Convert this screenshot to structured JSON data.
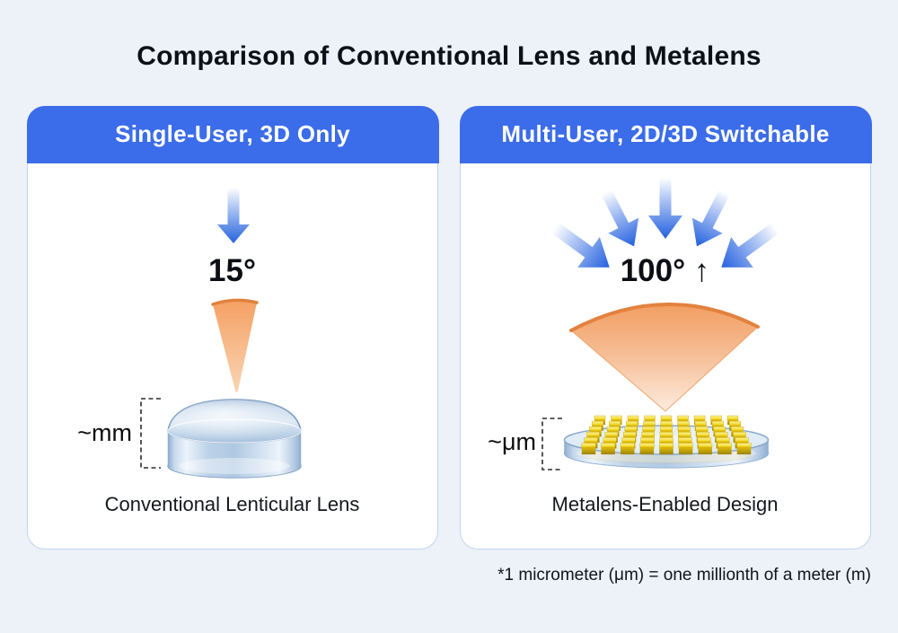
{
  "title": "Comparison of Conventional Lens and Metalens",
  "panels": {
    "left": {
      "header": "Single-User, 3D Only",
      "angle_label": "15°",
      "scale_label": "~mm",
      "caption": "Conventional Lenticular Lens"
    },
    "right": {
      "header": "Multi-User, 2D/3D Switchable",
      "angle_label": "100° ↑",
      "scale_label": "~μm",
      "caption": "Metalens-Enabled Design",
      "grid": {
        "rows": 6,
        "cols": 9
      }
    }
  },
  "footnote": "*1 micrometer (μm) = one millionth of a meter (m)",
  "colors": {
    "background": "#edf1f8",
    "panel_bg": "#ffffff",
    "panel_border": "#c2d4ee",
    "header_bg": "#3b6ce9",
    "header_text": "#ffffff",
    "title_text": "#0c1019",
    "arrow_blue": "#2563dd",
    "light_orange": "#f5a063",
    "orange_rim": "#e0823c",
    "lens_glass_blue": "#afc8e2",
    "nanostructure_gold": "#efd00c"
  }
}
